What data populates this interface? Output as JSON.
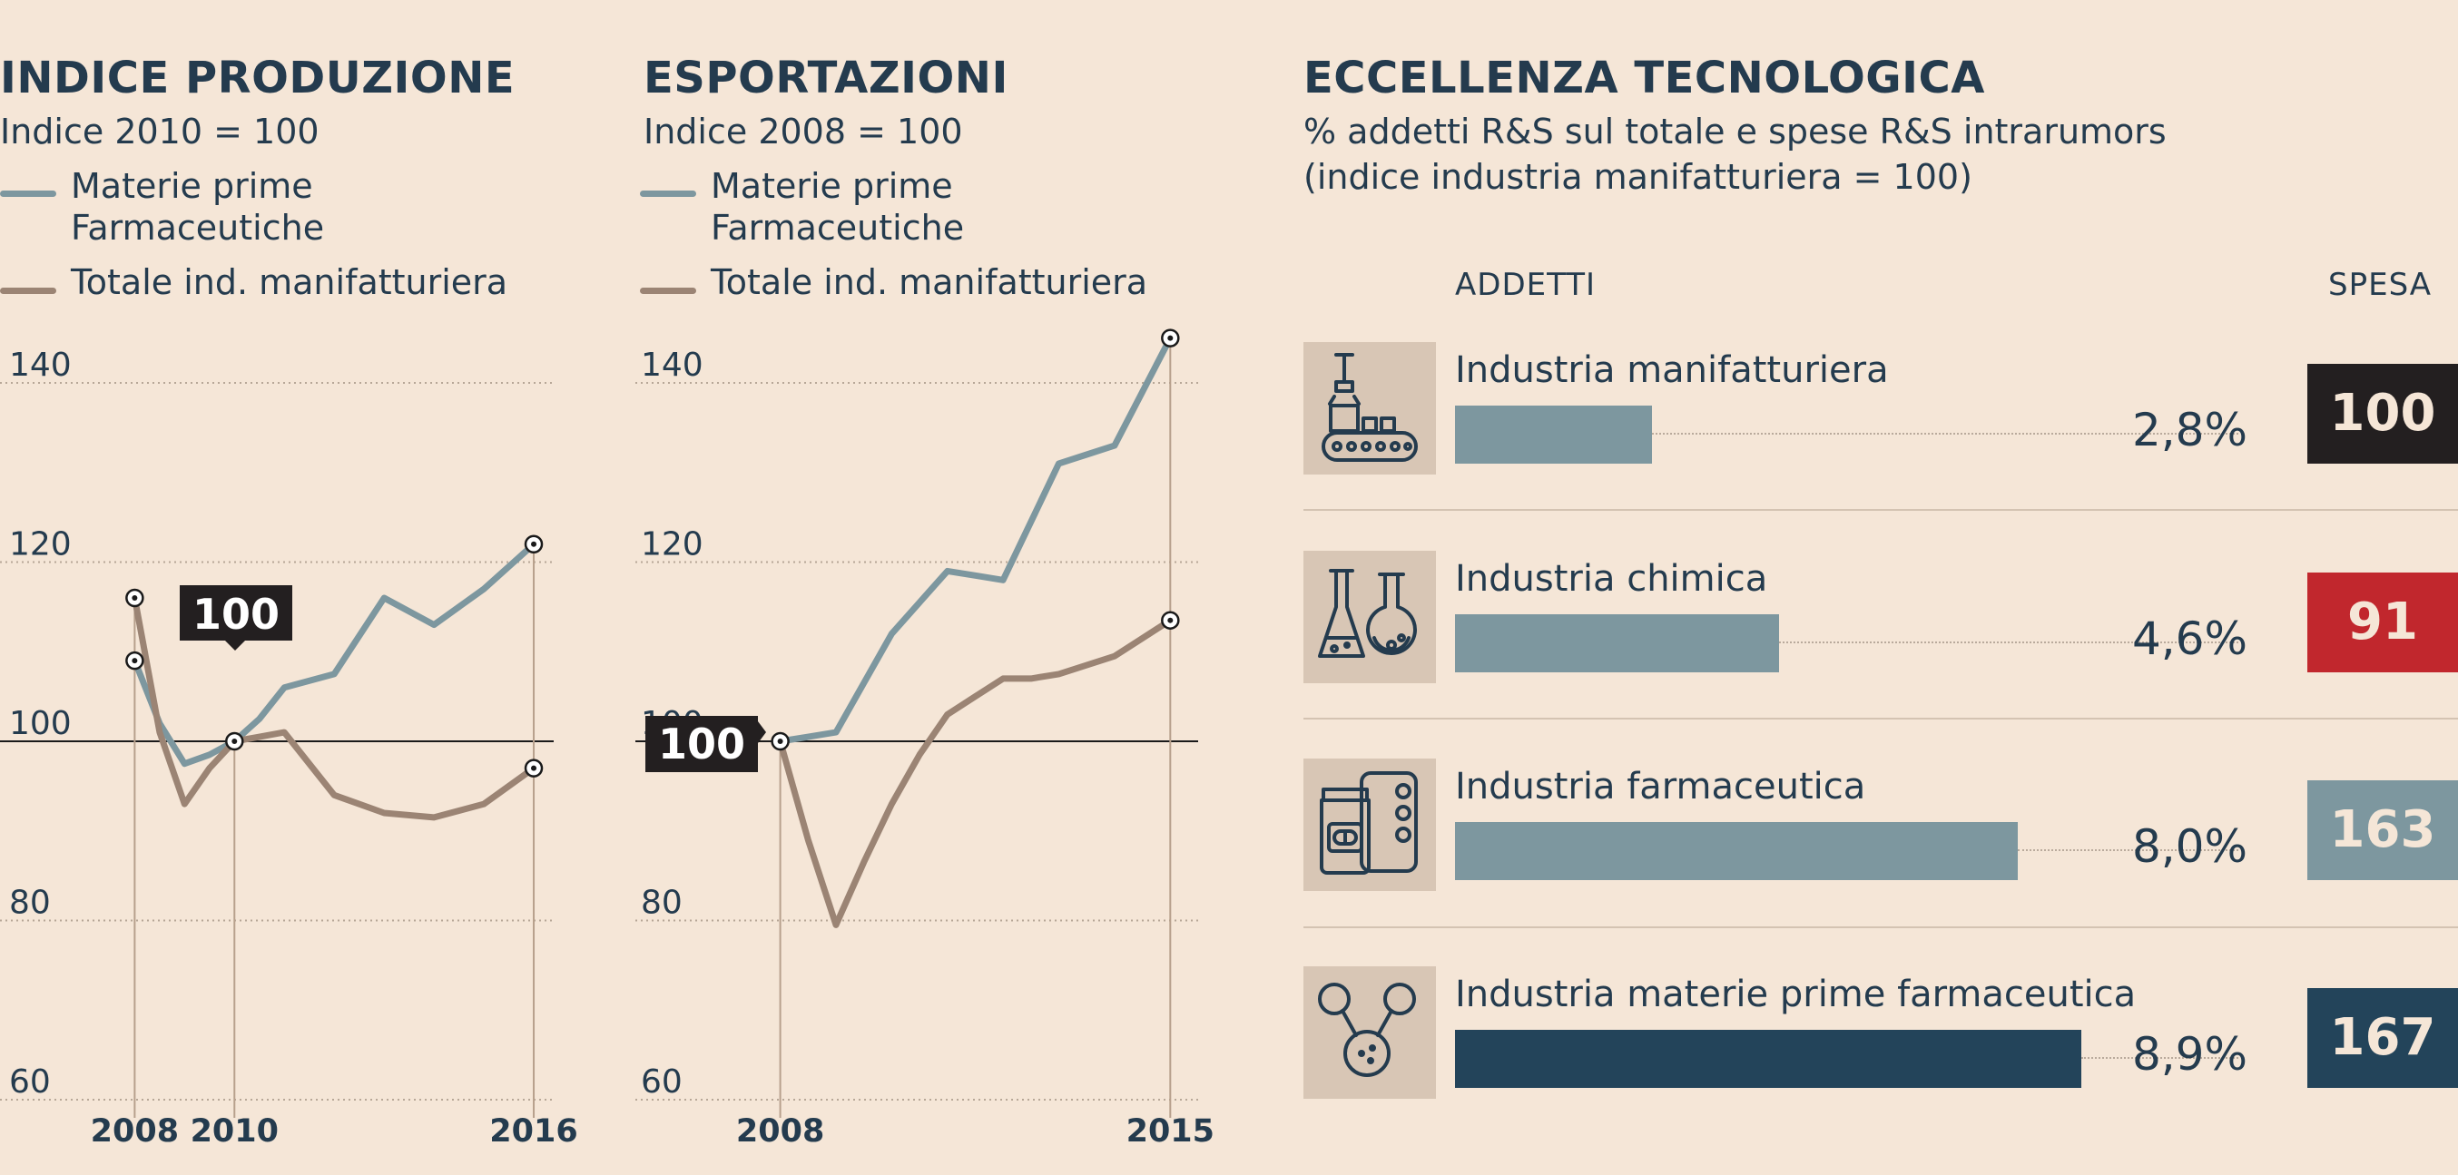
{
  "colors": {
    "pharma": "#7d979f",
    "manufacturing": "#9b8474",
    "dark": "#243b4e",
    "black": "#231f20",
    "red": "#c1272d",
    "grey_blue": "#7d979f",
    "navy": "#23445a"
  },
  "produzione": {
    "title": "INDICE PRODUZIONE",
    "subtitle": "Indice 2010 = 100",
    "legend_pharma_1": "Materie prime",
    "legend_pharma_2": "Farmaceutiche",
    "legend_total": "Totale ind. manifatturiera",
    "callout": "100"
  },
  "esportazioni": {
    "title": "ESPORTAZIONI",
    "subtitle": "Indice 2008 = 100",
    "legend_pharma_1": "Materie prime",
    "legend_pharma_2": "Farmaceutiche",
    "legend_total": "Totale ind. manifatturiera",
    "callout": "100"
  },
  "chart_data": [
    {
      "type": "line",
      "title": "INDICE PRODUZIONE",
      "subtitle": "Indice 2010 = 100",
      "x": [
        2008,
        2008.5,
        2009,
        2009.5,
        2010,
        2010.5,
        2011,
        2012,
        2013,
        2014,
        2015,
        2016
      ],
      "xticks": [
        2008,
        2010,
        2016
      ],
      "yticks": [
        60,
        80,
        100,
        120,
        140
      ],
      "ylim": [
        60,
        140
      ],
      "xlim": [
        2005.3,
        2016.4
      ],
      "reference_line": 100,
      "series": [
        {
          "name": "Materie prime Farmaceutiche",
          "values": [
            109,
            102,
            97.5,
            98.5,
            100,
            102.5,
            106,
            107.5,
            116,
            113,
            117,
            122
          ]
        },
        {
          "name": "Totale ind. manifatturiera",
          "values": [
            116,
            101,
            93,
            97,
            100,
            100.5,
            101,
            94,
            92,
            91.5,
            93,
            97
          ]
        }
      ],
      "markers": [
        [
          2008,
          109
        ],
        [
          2008,
          116
        ],
        [
          2010,
          100
        ],
        [
          2016,
          122
        ],
        [
          2016,
          97
        ]
      ],
      "vlines": [
        2008,
        2010,
        2016
      ]
    },
    {
      "type": "line",
      "title": "ESPORTAZIONI",
      "subtitle": "Indice 2008 = 100",
      "x": [
        2008,
        2008.5,
        2009,
        2009.5,
        2010,
        2010.5,
        2011,
        2011.5,
        2012,
        2012.5,
        2013,
        2013.5,
        2014,
        2014.5,
        2015
      ],
      "xticks": [
        2008,
        2015
      ],
      "yticks": [
        60,
        80,
        100,
        120,
        140
      ],
      "ylim": [
        60,
        140
      ],
      "xlim": [
        2005.4,
        2015.5
      ],
      "reference_line": 100,
      "series": [
        {
          "name": "Materie prime Farmaceutiche",
          "values": [
            100,
            100.5,
            101,
            106.5,
            112,
            115.5,
            119,
            118.5,
            118,
            124.5,
            131,
            132,
            133,
            139,
            145
          ]
        },
        {
          "name": "Totale ind. manifatturiera",
          "values": [
            100,
            89,
            79.5,
            86.5,
            93,
            98.5,
            103,
            105,
            107,
            107,
            107.5,
            108.5,
            109.5,
            111.5,
            113.5
          ]
        }
      ],
      "markers": [
        [
          2008,
          100
        ],
        [
          2015,
          145
        ],
        [
          2015,
          113.5
        ]
      ],
      "vlines": [
        2008,
        2015
      ]
    },
    {
      "type": "bar",
      "title": "ECCELLENZA TECNOLOGICA",
      "categories": [
        "Industria manifatturiera",
        "Industria chimica",
        "Industria farmaceutica",
        "Industria materie prime farmaceutica"
      ],
      "series": [
        {
          "name": "ADDETTI",
          "values": [
            2.8,
            4.6,
            8.0,
            8.9
          ],
          "unit": "%"
        },
        {
          "name": "SPESA",
          "values": [
            100,
            91,
            163,
            167
          ]
        }
      ],
      "xlim": [
        0,
        8.9
      ]
    }
  ],
  "eccellenza": {
    "title": "ECCELLENZA TECNOLOGICA",
    "subtitle_1": "% addetti R&S sul totale e spese R&S intrarumors",
    "subtitle_2": "(indice industria manifatturiera = 100)",
    "col_addetti": "ADDETTI",
    "col_spesa": "SPESA",
    "rows": [
      {
        "label": "Industria manifatturiera",
        "pct": "2,8%",
        "spesa": "100",
        "icon": "factory-conveyor-icon",
        "bar_color": "#7d979f",
        "spesa_color": "#231f20"
      },
      {
        "label": "Industria chimica",
        "pct": "4,6%",
        "spesa": "91",
        "icon": "lab-flasks-icon",
        "bar_color": "#7d979f",
        "spesa_color": "#c1272d"
      },
      {
        "label": "Industria farmaceutica",
        "pct": "8,0%",
        "spesa": "163",
        "icon": "pills-bottle-icon",
        "bar_color": "#7d979f",
        "spesa_color": "#7d979f"
      },
      {
        "label": "Industria materie prime farmaceutica",
        "pct": "8,9%",
        "spesa": "167",
        "icon": "molecule-icon",
        "bar_color": "#23445a",
        "spesa_color": "#23445a"
      }
    ]
  }
}
